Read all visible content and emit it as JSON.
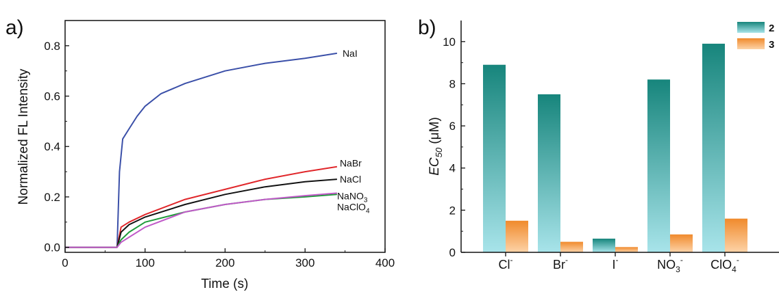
{
  "chart_data": [
    {
      "type": "line",
      "panel": "a)",
      "xlabel": "Time (s)",
      "ylabel": "Normalized FL Intensity",
      "xlim": [
        0,
        400
      ],
      "ylim": [
        -0.02,
        0.9
      ],
      "xticks": [
        0,
        100,
        200,
        300,
        400
      ],
      "yticks": [
        0.0,
        0.2,
        0.4,
        0.6,
        0.8
      ],
      "series": [
        {
          "name": "NaI",
          "color": "#3a4fa8",
          "x": [
            0,
            65,
            68,
            72,
            80,
            90,
            100,
            120,
            150,
            200,
            250,
            300,
            340
          ],
          "y": [
            0.0,
            0.0,
            0.3,
            0.43,
            0.47,
            0.52,
            0.56,
            0.61,
            0.65,
            0.7,
            0.73,
            0.75,
            0.77
          ]
        },
        {
          "name": "NaBr",
          "color": "#e0262a",
          "x": [
            0,
            65,
            70,
            80,
            100,
            150,
            200,
            250,
            300,
            340
          ],
          "y": [
            0.0,
            0.0,
            0.08,
            0.1,
            0.13,
            0.19,
            0.23,
            0.27,
            0.3,
            0.32
          ]
        },
        {
          "name": "NaCl",
          "color": "#111111",
          "x": [
            0,
            65,
            70,
            80,
            100,
            150,
            200,
            250,
            300,
            340
          ],
          "y": [
            0.0,
            0.0,
            0.06,
            0.09,
            0.12,
            0.17,
            0.21,
            0.24,
            0.26,
            0.27
          ]
        },
        {
          "name": "NaNO3",
          "color": "#1f9a3a",
          "x": [
            0,
            65,
            70,
            80,
            100,
            150,
            200,
            250,
            300,
            340
          ],
          "y": [
            0.0,
            0.0,
            0.03,
            0.06,
            0.1,
            0.14,
            0.17,
            0.19,
            0.2,
            0.21
          ]
        },
        {
          "name": "NaClO4",
          "color": "#c05ac8",
          "x": [
            0,
            65,
            70,
            80,
            100,
            150,
            200,
            250,
            300,
            340
          ],
          "y": [
            0.0,
            0.0,
            0.02,
            0.04,
            0.08,
            0.14,
            0.17,
            0.19,
            0.205,
            0.215
          ]
        }
      ],
      "line_labels": [
        {
          "main": "NaI",
          "sub": "",
          "post": ""
        },
        {
          "main": "NaBr",
          "sub": "",
          "post": ""
        },
        {
          "main": "NaCl",
          "sub": "",
          "post": ""
        },
        {
          "main": "NaNO",
          "sub": "3",
          "post": ""
        },
        {
          "main": "NaClO",
          "sub": "4",
          "post": ""
        }
      ]
    },
    {
      "type": "bar",
      "panel": "b)",
      "ylabel_main": "EC",
      "ylabel_sub": "50",
      "ylabel_unit": " (μM)",
      "ylim": [
        0,
        11
      ],
      "yticks": [
        0,
        2,
        4,
        6,
        8,
        10
      ],
      "categories": [
        {
          "main": "Cl",
          "sub": "",
          "sup": "-"
        },
        {
          "main": "Br",
          "sub": "",
          "sup": "-"
        },
        {
          "main": "I",
          "sub": "",
          "sup": "-"
        },
        {
          "main": "NO",
          "sub": "3",
          "sup": "-"
        },
        {
          "main": "ClO",
          "sub": "4",
          "sup": "-"
        }
      ],
      "series": [
        {
          "name": "2",
          "values": [
            8.9,
            7.5,
            0.65,
            8.2,
            9.9
          ],
          "color_top": "#17857c",
          "color_bottom": "#a8e4ea"
        },
        {
          "name": "3",
          "values": [
            1.5,
            0.5,
            0.25,
            0.85,
            1.6
          ],
          "color_top": "#f08a2c",
          "color_bottom": "#fdd3a8"
        }
      ]
    }
  ]
}
